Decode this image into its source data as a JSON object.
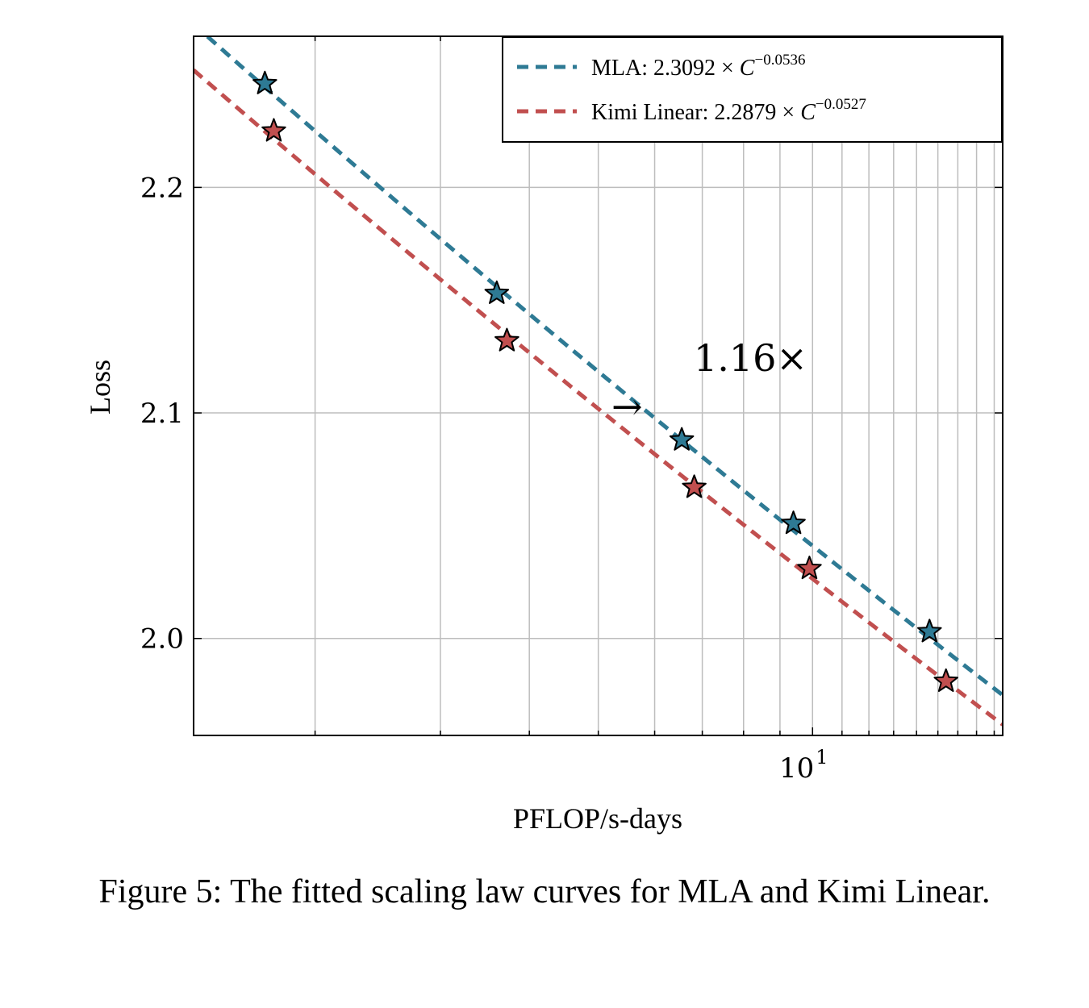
{
  "chart_data": {
    "type": "scatter",
    "xlabel": "PFLOP/s-days",
    "ylabel": "Loss",
    "xscale": "log",
    "xlim": [
      1.35,
      18.5
    ],
    "ylim": [
      1.957,
      2.267
    ],
    "yticks": [
      2.0,
      2.1,
      2.2
    ],
    "ytick_labels": [
      "2.0",
      "2.1",
      "2.2"
    ],
    "xticks_major": [
      10
    ],
    "xtick_major_labels": [
      "10",
      "1"
    ],
    "grid": true,
    "legend_position": "top-right",
    "series": [
      {
        "name": "MLA: 2.3092 × C^{−0.0536}",
        "legend_main": "MLA: 2.3092 × ",
        "legend_base": "C",
        "legend_exp": "−0.0536",
        "color": "#2e7a94",
        "coef": 2.3092,
        "exponent": -0.0536,
        "x": [
          1.7,
          3.6,
          6.55,
          9.4,
          14.6
        ],
        "y": [
          2.246,
          2.153,
          2.088,
          2.051,
          2.003
        ]
      },
      {
        "name": "Kimi Linear: 2.2879 × C^{−0.0527}",
        "legend_main": "Kimi Linear: 2.2879 × ",
        "legend_base": "C",
        "legend_exp": "−0.0527",
        "color": "#c14f4f",
        "coef": 2.2879,
        "exponent": -0.0527,
        "x": [
          1.75,
          3.72,
          6.82,
          9.9,
          15.4
        ],
        "y": [
          2.225,
          2.132,
          2.067,
          2.031,
          1.981
        ]
      }
    ],
    "annotation": {
      "text": "1.16×",
      "arrow": "→"
    }
  },
  "caption": "Figure 5: The fitted scaling law curves for MLA and Kimi Linear."
}
